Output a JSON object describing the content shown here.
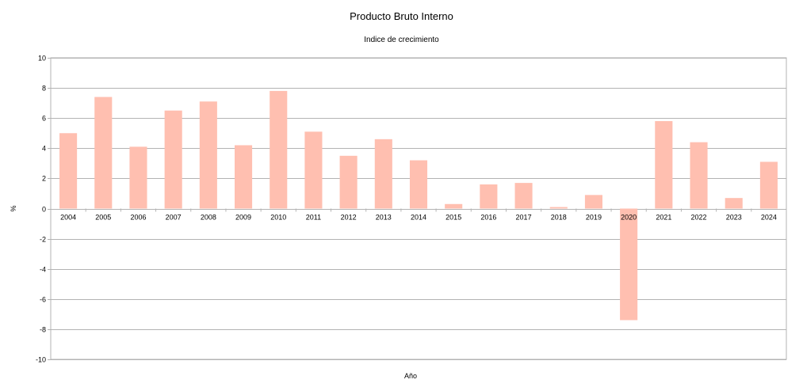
{
  "chart_data": {
    "type": "bar",
    "title": "Producto Bruto Interno",
    "subtitle": "Indice de crecimiento",
    "xlabel": "Año",
    "ylabel": "%",
    "ylim": [
      -10,
      10
    ],
    "y_ticks": [
      "10",
      "8",
      "6",
      "4",
      "2",
      "0",
      "-2",
      "-4",
      "-6",
      "-8",
      "-10"
    ],
    "grid": true,
    "legend": "none",
    "bar_color": "#ffbfb0",
    "categories": [
      "2004",
      "2005",
      "2006",
      "2007",
      "2008",
      "2009",
      "2010",
      "2011",
      "2012",
      "2013",
      "2014",
      "2015",
      "2016",
      "2017",
      "2018",
      "2019",
      "2020",
      "2021",
      "2022",
      "2023",
      "2024"
    ],
    "values": [
      5.0,
      7.4,
      4.1,
      6.5,
      7.1,
      4.2,
      7.8,
      5.1,
      3.5,
      4.6,
      3.2,
      0.3,
      1.6,
      1.7,
      0.1,
      0.9,
      -7.4,
      5.8,
      4.4,
      0.7,
      3.1
    ]
  }
}
